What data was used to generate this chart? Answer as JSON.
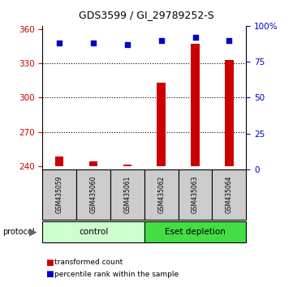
{
  "title": "GDS3599 / GI_29789252-S",
  "samples": [
    "GSM435059",
    "GSM435060",
    "GSM435061",
    "GSM435062",
    "GSM435063",
    "GSM435064"
  ],
  "red_values": [
    248,
    244,
    241,
    313,
    347,
    333
  ],
  "blue_values": [
    88,
    88,
    87,
    90,
    92,
    90
  ],
  "ylim_left": [
    237,
    363
  ],
  "ylim_right": [
    0,
    100
  ],
  "yticks_left": [
    240,
    270,
    300,
    330,
    360
  ],
  "yticks_right": [
    0,
    25,
    50,
    75,
    100
  ],
  "yticklabels_right": [
    "0",
    "25",
    "50",
    "75",
    "100%"
  ],
  "red_color": "#cc0000",
  "blue_color": "#0000cc",
  "bar_bottom": 240,
  "groups": [
    {
      "label": "control",
      "start": 0,
      "end": 3,
      "color": "#ccffcc"
    },
    {
      "label": "Eset depletion",
      "start": 3,
      "end": 6,
      "color": "#44dd44"
    }
  ],
  "protocol_label": "protocol",
  "legend_red": "transformed count",
  "legend_blue": "percentile rank within the sample",
  "dotted_yticks": [
    270,
    300,
    330
  ],
  "bar_width": 0.25,
  "bg_color": "#ffffff"
}
